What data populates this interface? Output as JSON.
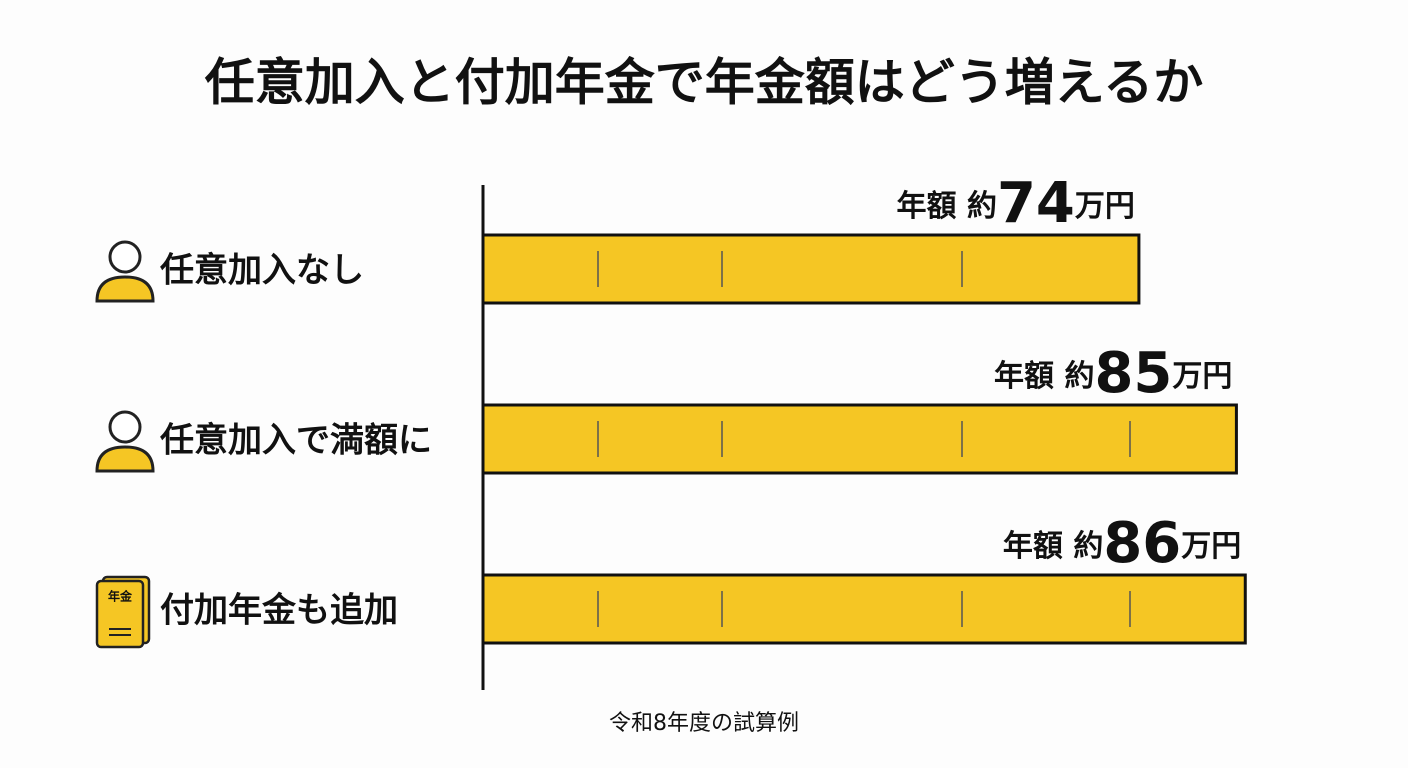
{
  "chart_data": {
    "type": "bar",
    "orientation": "horizontal",
    "title": "任意加入と付加年金で年金額はどう増えるか",
    "categories": [
      "任意加入なし",
      "任意加入で満額に",
      "付加年金も追加"
    ],
    "icons": [
      "person",
      "person",
      "book"
    ],
    "icon_label": "年金",
    "values": [
      74,
      85,
      86
    ],
    "value_labels": [
      "年額 約74万円",
      "年額 約85万円",
      "年額 約86万円"
    ],
    "color": "#f5c624",
    "xlim": [
      0,
      88
    ],
    "note": "令和8年度の試算例"
  }
}
